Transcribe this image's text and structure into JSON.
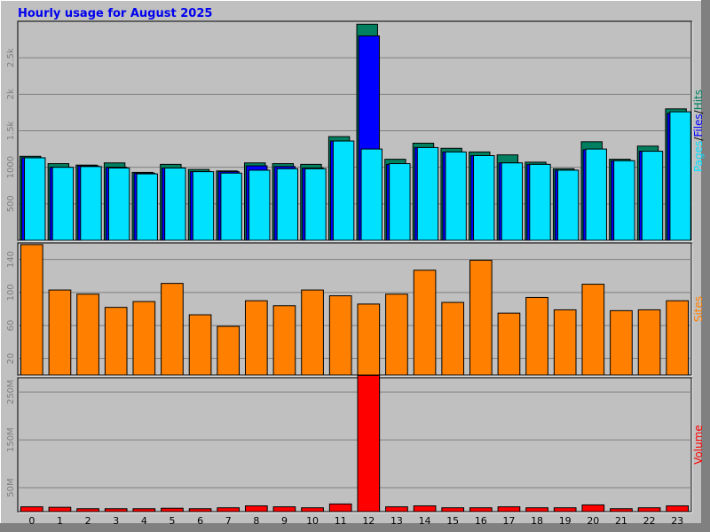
{
  "chart_data": {
    "title": "Hourly usage for August 2025",
    "type": "bar",
    "categories": [
      "0",
      "1",
      "2",
      "3",
      "4",
      "5",
      "6",
      "7",
      "8",
      "9",
      "10",
      "11",
      "12",
      "13",
      "14",
      "15",
      "16",
      "17",
      "18",
      "19",
      "20",
      "21",
      "22",
      "23"
    ],
    "panels": [
      {
        "id": "hits",
        "ylim": [
          0,
          3000
        ],
        "yticks": [
          500,
          1000,
          1500,
          2000,
          2500
        ],
        "ytick_labels": [
          "500",
          "1000",
          "1.5k",
          "2k",
          "2.5k"
        ],
        "legend": [
          "Pages",
          "Files",
          "Hits"
        ],
        "series": [
          {
            "name": "Hits",
            "color": "#008060",
            "values": [
              1150,
              1050,
              1030,
              1060,
              930,
              1040,
              970,
              950,
              1060,
              1050,
              1040,
              1420,
              2960,
              1110,
              1330,
              1260,
              1210,
              1170,
              1070,
              980,
              1350,
              1110,
              1290,
              1800
            ]
          },
          {
            "name": "Files",
            "color": "#0000ff",
            "values": [
              1130,
              1000,
              1020,
              1000,
              920,
              990,
              940,
              940,
              1020,
              1010,
              990,
              1360,
              2800,
              1040,
              1270,
              1210,
              1160,
              1060,
              1040,
              960,
              1240,
              1090,
              1220,
              1740
            ]
          },
          {
            "name": "Pages",
            "color": "#00e0ff",
            "values": [
              1130,
              1000,
              1010,
              990,
              910,
              990,
              940,
              920,
              960,
              980,
              980,
              1360,
              1250,
              1050,
              1270,
              1210,
              1160,
              1060,
              1040,
              960,
              1250,
              1090,
              1220,
              1760
            ]
          }
        ]
      },
      {
        "id": "sites",
        "ylim": [
          0,
          160
        ],
        "yticks": [
          20,
          60,
          100,
          140
        ],
        "ytick_labels": [
          "20",
          "60",
          "100",
          "140"
        ],
        "legend": [
          "Sites"
        ],
        "series": [
          {
            "name": "Sites",
            "color": "#ff8000",
            "values": [
              158,
              103,
              98,
              82,
              89,
              111,
              73,
              59,
              90,
              84,
              103,
              96,
              86,
              98,
              127,
              88,
              139,
              75,
              94,
              79,
              110,
              78,
              79,
              90
            ]
          }
        ]
      },
      {
        "id": "volume",
        "ylim": [
          0,
          280
        ],
        "yticks": [
          50,
          150,
          250
        ],
        "ytick_labels": [
          "50M",
          "150M",
          "250M"
        ],
        "legend": [
          "Volume"
        ],
        "series": [
          {
            "name": "Volume",
            "color": "#ff0000",
            "values": [
              10,
              9,
              6,
              6,
              6,
              7,
              6,
              8,
              12,
              10,
              8,
              16,
              285,
              10,
              12,
              8,
              8,
              10,
              8,
              8,
              14,
              6,
              8,
              12
            ]
          }
        ]
      }
    ]
  },
  "colors": {
    "title": "#0000ee",
    "plot_bg": "#c0c0c0",
    "grid": "#808080",
    "pages": "#00e0ff",
    "files": "#0000ff",
    "hits": "#008060",
    "sites": "#ff8000",
    "volume": "#ff0000",
    "tick_text": "#7f7f7f"
  }
}
